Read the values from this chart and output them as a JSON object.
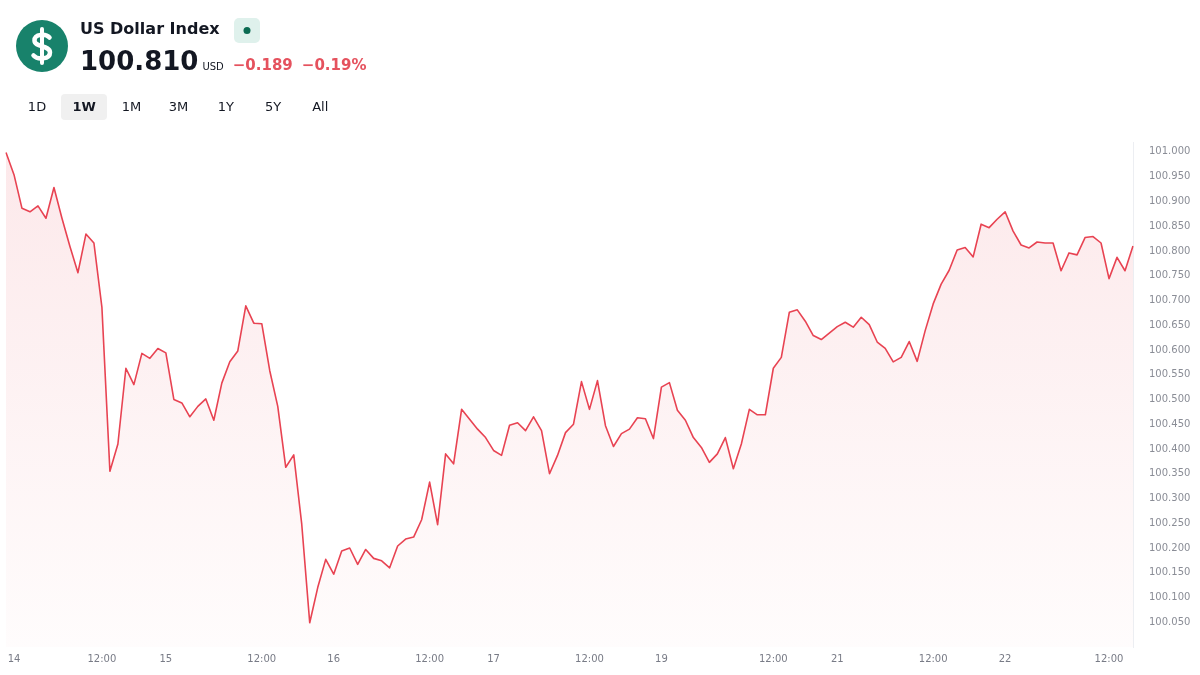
{
  "chart_data": {
    "type": "area",
    "title": "US Dollar Index",
    "annotations": [
      "100.810",
      "USD",
      "−0.189",
      "−0.19%",
      "1D",
      "1W",
      "1M",
      "3M",
      "1Y",
      "5Y",
      "All"
    ],
    "categories": [
      null,
      "14",
      null,
      null,
      null,
      null,
      null,
      null,
      null,
      null,
      null,
      null,
      "12:00",
      null,
      null,
      null,
      null,
      null,
      null,
      null,
      "15",
      null,
      null,
      null,
      null,
      null,
      null,
      null,
      null,
      null,
      null,
      null,
      "12:00",
      null,
      null,
      null,
      null,
      null,
      null,
      null,
      null,
      "16",
      null,
      null,
      null,
      null,
      null,
      null,
      null,
      null,
      null,
      null,
      null,
      "12:00",
      null,
      null,
      null,
      null,
      null,
      null,
      null,
      "17",
      null,
      null,
      null,
      null,
      null,
      null,
      null,
      null,
      null,
      null,
      null,
      "12:00",
      null,
      null,
      null,
      null,
      null,
      null,
      null,
      null,
      "19",
      null,
      null,
      null,
      null,
      null,
      null,
      null,
      null,
      null,
      null,
      null,
      null,
      null,
      "12:00",
      null,
      null,
      null,
      null,
      null,
      null,
      null,
      "21",
      null,
      null,
      null,
      null,
      null,
      null,
      null,
      null,
      null,
      null,
      null,
      "12:00",
      null,
      null,
      null,
      null,
      null,
      null,
      null,
      null,
      "22",
      null,
      null,
      null,
      null,
      null,
      null,
      null,
      null,
      null,
      null,
      null,
      null,
      "12:00",
      null,
      null,
      null
    ],
    "values": [
      100.999,
      100.954,
      100.886,
      100.879,
      100.891,
      100.866,
      100.928,
      100.866,
      100.809,
      100.756,
      100.834,
      100.816,
      100.686,
      100.355,
      100.41,
      100.563,
      100.53,
      100.593,
      100.583,
      100.603,
      100.594,
      100.5,
      100.493,
      100.465,
      100.486,
      100.501,
      100.458,
      100.533,
      100.576,
      100.598,
      100.689,
      100.654,
      100.653,
      100.558,
      100.486,
      100.363,
      100.388,
      100.248,
      100.049,
      100.12,
      100.177,
      100.147,
      100.194,
      100.2,
      100.167,
      100.197,
      100.179,
      100.174,
      100.16,
      100.204,
      100.218,
      100.222,
      100.257,
      100.333,
      100.247,
      100.39,
      100.37,
      100.48,
      100.46,
      100.44,
      100.423,
      100.397,
      100.387,
      100.448,
      100.453,
      100.437,
      100.465,
      100.437,
      100.35,
      100.387,
      100.433,
      100.45,
      100.536,
      100.48,
      100.538,
      100.447,
      100.405,
      100.431,
      100.44,
      100.463,
      100.461,
      100.421,
      100.525,
      100.534,
      100.478,
      100.458,
      100.423,
      100.403,
      100.373,
      100.39,
      100.423,
      100.36,
      100.41,
      100.48,
      100.469,
      100.469,
      100.563,
      100.585,
      100.676,
      100.681,
      100.658,
      100.629,
      100.621,
      100.634,
      100.647,
      100.656,
      100.646,
      100.666,
      100.651,
      100.616,
      100.603,
      100.576,
      100.585,
      100.617,
      100.577,
      100.639,
      100.693,
      100.733,
      100.761,
      100.802,
      100.807,
      100.788,
      100.854,
      100.847,
      100.864,
      100.879,
      100.84,
      100.812,
      100.806,
      100.818,
      100.816,
      100.816,
      100.76,
      100.796,
      100.792,
      100.827,
      100.829,
      100.816,
      100.744,
      100.787,
      100.76,
      100.81
    ],
    "color": "#e84352",
    "ylim": [
      100.0,
      101.02
    ],
    "yticks": [
      {
        "value": 100.05,
        "label": "100.050"
      },
      {
        "value": 100.1,
        "label": "100.100"
      },
      {
        "value": 100.15,
        "label": "100.150"
      },
      {
        "value": 100.2,
        "label": "100.200"
      },
      {
        "value": 100.25,
        "label": "100.250"
      },
      {
        "value": 100.3,
        "label": "100.300"
      },
      {
        "value": 100.35,
        "label": "100.350"
      },
      {
        "value": 100.4,
        "label": "100.400"
      },
      {
        "value": 100.45,
        "label": "100.450"
      },
      {
        "value": 100.5,
        "label": "100.500"
      },
      {
        "value": 100.55,
        "label": "100.550"
      },
      {
        "value": 100.6,
        "label": "100.600"
      },
      {
        "value": 100.65,
        "label": "100.650"
      },
      {
        "value": 100.7,
        "label": "100.700"
      },
      {
        "value": 100.75,
        "label": "100.750"
      },
      {
        "value": 100.8,
        "label": "100.800"
      },
      {
        "value": 100.85,
        "label": "100.850"
      },
      {
        "value": 100.9,
        "label": "100.900"
      },
      {
        "value": 100.95,
        "label": "100.950"
      },
      {
        "value": 101.0,
        "label": "101.000"
      }
    ]
  }
}
